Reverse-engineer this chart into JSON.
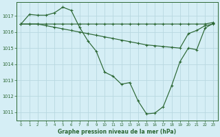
{
  "title": "Graphe pression niveau de la mer (hPa)",
  "background_color": "#d5eef5",
  "grid_color": "#b8d8e0",
  "line_color": "#2a6632",
  "ylim": [
    1010.5,
    1017.85
  ],
  "xlim": [
    -0.5,
    23.5
  ],
  "yticks": [
    1011,
    1012,
    1013,
    1014,
    1015,
    1016,
    1017
  ],
  "xticks": [
    0,
    1,
    2,
    3,
    4,
    5,
    6,
    7,
    8,
    9,
    10,
    11,
    12,
    13,
    14,
    15,
    16,
    17,
    18,
    19,
    20,
    21,
    22,
    23
  ],
  "series": [
    {
      "x": [
        0,
        1,
        2,
        3,
        4,
        5,
        6,
        7,
        8,
        9,
        10,
        11,
        12,
        13,
        14,
        15,
        16,
        17,
        18,
        19,
        20,
        21,
        22,
        23
      ],
      "y": [
        1016.5,
        1016.5,
        1016.5,
        1016.5,
        1016.5,
        1016.5,
        1016.5,
        1016.5,
        1016.5,
        1016.5,
        1016.5,
        1016.5,
        1016.5,
        1016.5,
        1016.5,
        1016.5,
        1016.5,
        1016.5,
        1016.5,
        1016.5,
        1016.5,
        1016.5,
        1016.5,
        1016.6
      ]
    },
    {
      "x": [
        0,
        1,
        2,
        3,
        4,
        5,
        6,
        7,
        8,
        9,
        10,
        11,
        12,
        13,
        14,
        15,
        16,
        17,
        18,
        19,
        20,
        21,
        22,
        23
      ],
      "y": [
        1016.5,
        1016.5,
        1016.5,
        1016.4,
        1016.3,
        1016.2,
        1016.1,
        1016.0,
        1015.9,
        1015.8,
        1015.7,
        1015.6,
        1015.5,
        1015.4,
        1015.3,
        1015.2,
        1015.15,
        1015.1,
        1015.05,
        1015.0,
        1015.9,
        1016.1,
        1016.4,
        1016.5
      ]
    },
    {
      "x": [
        0,
        1,
        2,
        3,
        4,
        5,
        6,
        7,
        8,
        9,
        10,
        11,
        12,
        13,
        14,
        15,
        16,
        17,
        18,
        19,
        20,
        21,
        22,
        23
      ],
      "y": [
        1016.5,
        1017.1,
        1017.05,
        1017.05,
        1017.2,
        1017.55,
        1017.35,
        1016.3,
        1015.45,
        1014.8,
        1013.5,
        1013.25,
        1012.75,
        1012.85,
        1011.7,
        1010.9,
        1010.95,
        1011.35,
        1012.65,
        1014.15,
        1015.0,
        1014.9,
        1016.25,
        1016.55
      ]
    }
  ]
}
